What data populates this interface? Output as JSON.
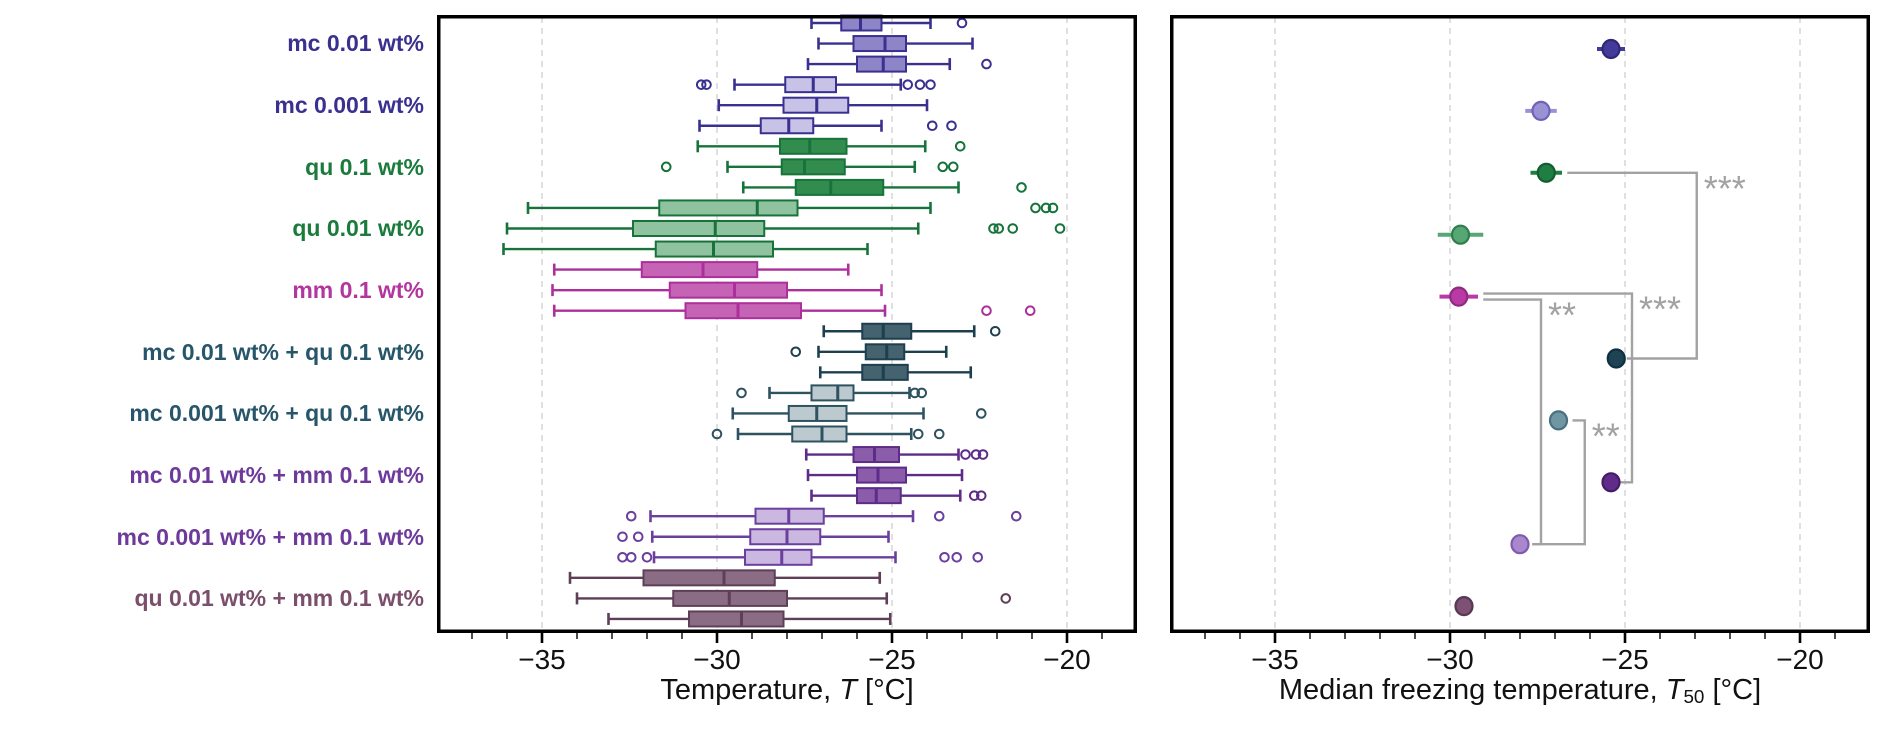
{
  "figure": {
    "background": "#ffffff",
    "grid_color": "#d9d9d9",
    "frame_color": "#000000",
    "tick_label_color": "#111111",
    "bracket_color": "#a2a2a2"
  },
  "chart_data": [
    {
      "type": "boxplot",
      "orientation": "horizontal",
      "xlabel_parts": {
        "prefix": "Temperature, ",
        "symbol": "T",
        "subscript": "",
        "suffix": " [°C]"
      },
      "xlim": [
        -38.0,
        -18.0
      ],
      "xticks": [
        -35,
        -30,
        -25,
        -20
      ],
      "xtick_labels": [
        "−35",
        "−30",
        "−25",
        "−20"
      ],
      "minor_tick_step": 1,
      "grid": true,
      "boxes_per_group": 3,
      "groups": [
        {
          "label": "mc 0.01 wt%",
          "label_color": "#39308f",
          "edge": "#39308f",
          "fill": "#8d85c7",
          "boxes": [
            {
              "whislo": -27.3,
              "q1": -26.45,
              "med": -25.9,
              "q3": -25.3,
              "whishi": -23.9,
              "outliers": [
                -23.0
              ]
            },
            {
              "whislo": -27.1,
              "q1": -26.1,
              "med": -25.2,
              "q3": -24.6,
              "whishi": -22.7,
              "outliers": []
            },
            {
              "whislo": -27.4,
              "q1": -26.0,
              "med": -25.25,
              "q3": -24.6,
              "whishi": -23.35,
              "outliers": [
                -22.3
              ]
            }
          ]
        },
        {
          "label": "mc 0.001 wt%",
          "label_color": "#39308f",
          "edge": "#39308f",
          "fill": "#c8c3e6",
          "boxes": [
            {
              "whislo": -29.5,
              "q1": -28.05,
              "med": -27.25,
              "q3": -26.6,
              "whishi": -24.75,
              "outliers": [
                -30.45,
                -30.3,
                -24.55,
                -24.2,
                -23.9
              ]
            },
            {
              "whislo": -29.95,
              "q1": -28.1,
              "med": -27.15,
              "q3": -26.25,
              "whishi": -24.0,
              "outliers": []
            },
            {
              "whislo": -30.5,
              "q1": -28.75,
              "med": -27.95,
              "q3": -27.25,
              "whishi": -25.3,
              "outliers": [
                -23.85,
                -23.3
              ]
            }
          ]
        },
        {
          "label": "qu 0.1 wt%",
          "label_color": "#1a7b3c",
          "edge": "#17733a",
          "fill": "#318c4e",
          "boxes": [
            {
              "whislo": -30.55,
              "q1": -28.2,
              "med": -27.35,
              "q3": -26.3,
              "whishi": -24.05,
              "outliers": [
                -23.05
              ]
            },
            {
              "whislo": -29.7,
              "q1": -28.15,
              "med": -27.5,
              "q3": -26.35,
              "whishi": -24.35,
              "outliers": [
                -31.45,
                -23.55,
                -23.25
              ]
            },
            {
              "whislo": -29.25,
              "q1": -27.75,
              "med": -26.75,
              "q3": -25.25,
              "whishi": -23.1,
              "outliers": [
                -21.3
              ]
            }
          ]
        },
        {
          "label": "qu 0.01 wt%",
          "label_color": "#1a7b3c",
          "edge": "#17733a",
          "fill": "#8fc3a0",
          "boxes": [
            {
              "whislo": -35.4,
              "q1": -31.65,
              "med": -28.85,
              "q3": -27.7,
              "whishi": -23.9,
              "outliers": [
                -20.9,
                -20.6,
                -20.4
              ]
            },
            {
              "whislo": -36.0,
              "q1": -32.4,
              "med": -30.05,
              "q3": -28.65,
              "whishi": -24.25,
              "outliers": [
                -22.1,
                -21.95,
                -21.55,
                -20.2
              ]
            },
            {
              "whislo": -36.1,
              "q1": -31.75,
              "med": -30.1,
              "q3": -28.4,
              "whishi": -25.7,
              "outliers": []
            }
          ]
        },
        {
          "label": "mm 0.1 wt%",
          "label_color": "#b3369f",
          "edge": "#ad2f9b",
          "fill": "#c563b4",
          "boxes": [
            {
              "whislo": -34.65,
              "q1": -32.15,
              "med": -30.4,
              "q3": -28.85,
              "whishi": -26.25,
              "outliers": []
            },
            {
              "whislo": -34.7,
              "q1": -31.35,
              "med": -29.5,
              "q3": -28.0,
              "whishi": -25.3,
              "outliers": []
            },
            {
              "whislo": -34.65,
              "q1": -30.9,
              "med": -29.4,
              "q3": -27.6,
              "whishi": -25.2,
              "outliers": [
                -22.3,
                -21.05
              ]
            }
          ]
        },
        {
          "label": "mc 0.01 wt% + qu 0.1 wt%",
          "label_color": "#27566a",
          "edge": "#1d3f4e",
          "fill": "#45626f",
          "boxes": [
            {
              "whislo": -26.95,
              "q1": -25.85,
              "med": -25.25,
              "q3": -24.45,
              "whishi": -22.65,
              "outliers": [
                -22.05
              ]
            },
            {
              "whislo": -27.1,
              "q1": -25.75,
              "med": -25.15,
              "q3": -24.65,
              "whishi": -23.45,
              "outliers": [
                -27.75
              ]
            },
            {
              "whislo": -27.05,
              "q1": -25.85,
              "med": -25.25,
              "q3": -24.55,
              "whishi": -22.75,
              "outliers": []
            }
          ]
        },
        {
          "label": "mc 0.001 wt% + qu 0.1 wt%",
          "label_color": "#27566a",
          "edge": "#2e5260",
          "fill": "#bcc9ce",
          "boxes": [
            {
              "whislo": -28.5,
              "q1": -27.3,
              "med": -26.55,
              "q3": -26.1,
              "whishi": -24.5,
              "outliers": [
                -29.3,
                -24.35,
                -24.15
              ]
            },
            {
              "whislo": -29.55,
              "q1": -27.95,
              "med": -27.15,
              "q3": -26.3,
              "whishi": -24.1,
              "outliers": [
                -22.45
              ]
            },
            {
              "whislo": -29.4,
              "q1": -27.85,
              "med": -27.0,
              "q3": -26.3,
              "whishi": -24.45,
              "outliers": [
                -30.0,
                -24.25,
                -23.65
              ]
            }
          ]
        },
        {
          "label": "mc 0.01 wt% + mm 0.1 wt%",
          "label_color": "#6d3a9b",
          "edge": "#5d2c88",
          "fill": "#8a5caa",
          "boxes": [
            {
              "whislo": -27.45,
              "q1": -26.1,
              "med": -25.5,
              "q3": -24.8,
              "whishi": -23.1,
              "outliers": [
                -22.9,
                -22.6,
                -22.4
              ]
            },
            {
              "whislo": -27.4,
              "q1": -26.0,
              "med": -25.4,
              "q3": -24.6,
              "whishi": -23.0,
              "outliers": []
            },
            {
              "whislo": -27.3,
              "q1": -26.0,
              "med": -25.45,
              "q3": -24.75,
              "whishi": -23.05,
              "outliers": [
                -22.65,
                -22.45
              ]
            }
          ]
        },
        {
          "label": "mc 0.001 wt% + mm 0.1 wt%",
          "label_color": "#6d3a9b",
          "edge": "#6a3f9e",
          "fill": "#cbb8e1",
          "boxes": [
            {
              "whislo": -31.9,
              "q1": -28.9,
              "med": -27.95,
              "q3": -26.95,
              "whishi": -24.4,
              "outliers": [
                -32.45,
                -23.65,
                -21.45
              ]
            },
            {
              "whislo": -31.85,
              "q1": -29.05,
              "med": -28.0,
              "q3": -27.05,
              "whishi": -25.1,
              "outliers": [
                -32.7,
                -32.25
              ]
            },
            {
              "whislo": -31.8,
              "q1": -29.2,
              "med": -28.15,
              "q3": -27.3,
              "whishi": -24.9,
              "outliers": [
                -32.7,
                -32.45,
                -32.0,
                -23.5,
                -23.15,
                -22.55
              ]
            }
          ]
        },
        {
          "label": "qu 0.01 wt% + mm 0.1 wt%",
          "label_color": "#7b4e6c",
          "edge": "#5f3f58",
          "fill": "#8a6d84",
          "boxes": [
            {
              "whislo": -34.2,
              "q1": -32.1,
              "med": -29.8,
              "q3": -28.35,
              "whishi": -25.35,
              "outliers": []
            },
            {
              "whislo": -34.0,
              "q1": -31.25,
              "med": -29.65,
              "q3": -28.0,
              "whishi": -25.15,
              "outliers": [
                -21.75
              ]
            },
            {
              "whislo": -33.1,
              "q1": -30.8,
              "med": -29.3,
              "q3": -28.1,
              "whishi": -25.05,
              "outliers": []
            }
          ]
        }
      ]
    },
    {
      "type": "scatter",
      "orientation": "horizontal",
      "xlabel_parts": {
        "prefix": "Median freezing temperature, ",
        "symbol": "T",
        "subscript": "50",
        "suffix": " [°C]"
      },
      "xlim": [
        -38.0,
        -18.0
      ],
      "xticks": [
        -35,
        -30,
        -25,
        -20
      ],
      "xtick_labels": [
        "−35",
        "−30",
        "−25",
        "−20"
      ],
      "minor_tick_step": 1,
      "grid": true,
      "points": [
        {
          "label": "mc 0.01 wt%",
          "t50": -25.4,
          "err": 0.4,
          "color": "#443a9a",
          "edge": "#2f2875"
        },
        {
          "label": "mc 0.001 wt%",
          "t50": -27.4,
          "err": 0.45,
          "color": "#9b92d6",
          "edge": "#6e63b8"
        },
        {
          "label": "qu 0.1 wt%",
          "t50": -27.25,
          "err": 0.45,
          "color": "#1f7e42",
          "edge": "#145c2e"
        },
        {
          "label": "qu 0.01 wt%",
          "t50": -29.7,
          "err": 0.65,
          "color": "#56a773",
          "edge": "#2f7e4e"
        },
        {
          "label": "mm 0.1 wt%",
          "t50": -29.75,
          "err": 0.55,
          "color": "#ba3aa5",
          "edge": "#8f2a7f"
        },
        {
          "label": "mc 0.01 wt% + qu 0.1 wt%",
          "t50": -25.25,
          "err": 0.15,
          "color": "#1d4355",
          "edge": "#10303f"
        },
        {
          "label": "mc 0.001 wt% + qu 0.1 wt%",
          "t50": -26.9,
          "err": 0.25,
          "color": "#7095a3",
          "edge": "#48707f"
        },
        {
          "label": "mc 0.01 wt% + mm 0.1 wt%",
          "t50": -25.4,
          "err": 0.1,
          "color": "#602b89",
          "edge": "#451d66"
        },
        {
          "label": "mc 0.001 wt% + mm 0.1 wt%",
          "t50": -28.0,
          "err": 0.2,
          "color": "#a887cd",
          "edge": "#7e5bab"
        },
        {
          "label": "qu 0.01 wt% + mm 0.1 wt%",
          "t50": -29.6,
          "err": 0.1,
          "color": "#7c5173",
          "edge": "#573753"
        }
      ],
      "brackets": [
        {
          "group_a": 2,
          "group_b": 5,
          "x": -22.95,
          "label": "***",
          "a_dy": 0,
          "b_dy": 0
        },
        {
          "group_a": 4,
          "group_b": 7,
          "x": -24.8,
          "label": "***",
          "a_dy": -3,
          "b_dy": 0
        },
        {
          "group_a": 4,
          "group_b": 8,
          "x": -27.4,
          "label": "**",
          "a_dy": 3,
          "b_dy": 0
        },
        {
          "group_a": 6,
          "group_b": 8,
          "x": -26.15,
          "label": "**",
          "a_dy": 0,
          "b_dy": 0
        }
      ]
    }
  ]
}
